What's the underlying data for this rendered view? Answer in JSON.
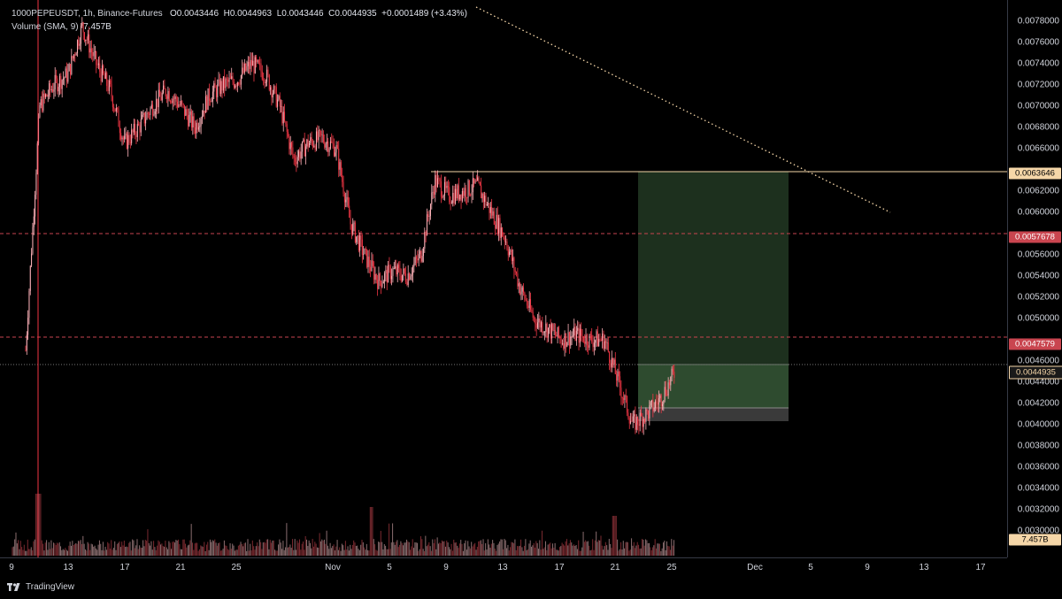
{
  "legend": {
    "symbol": "1000PEPEUSDT, 1h, Binance-Futures",
    "open": "O0.0043446",
    "high": "H0.0044963",
    "low": "L0.0043446",
    "close": "C0.0044935",
    "change": "+0.0001489 (+3.43%)",
    "volume_label": "Volume (SMA, 9)",
    "volume_value": "7.457B"
  },
  "price_axis_ticks": [
    "0.0078000",
    "0.0076000",
    "0.0074000",
    "0.0072000",
    "0.0070000",
    "0.0068000",
    "0.0066000",
    "0.0062000",
    "0.0060000",
    "0.0056000",
    "0.0054000",
    "0.0052000",
    "0.0050000",
    "0.0046000",
    "0.0044000",
    "0.0042000",
    "0.0040000",
    "0.0038000",
    "0.0036000",
    "0.0034000",
    "0.0032000",
    "0.0030000"
  ],
  "price_tags": {
    "resistance_top": "0.0063646",
    "dashed_upper": "0.0057678",
    "dashed_lower": "0.0047579",
    "last_price": "0.0044935",
    "volume": "7.457B"
  },
  "time_axis_ticks": [
    "9",
    "13",
    "17",
    "21",
    "25",
    "Nov",
    "5",
    "9",
    "13",
    "17",
    "21",
    "25",
    "Dec",
    "5",
    "9",
    "13",
    "17"
  ],
  "footer": {
    "brand": "TradingView"
  },
  "colors": {
    "background": "#000000",
    "candle": "#f23645",
    "candle_light": "#ffb3ba",
    "resistance_line": "#f5d6a8",
    "dashed_line": "#c9454f",
    "target_zone": "#1f3320",
    "entry_zone": "#2e4b2f",
    "stop_zone": "#3a3a3a"
  },
  "chart_data": {
    "type": "candlestick",
    "symbol": "1000PEPEUSDT",
    "interval": "1h",
    "exchange": "Binance-Futures",
    "ylim": [
      0.00282,
      0.00795
    ],
    "levels": [
      0.0063646,
      0.0057678,
      0.0047579,
      0.0044935
    ],
    "position": {
      "entry": 0.0044935,
      "target": 0.0063646,
      "stop": 0.00407
    },
    "close_path": [
      [
        "Oct 10",
        0.0047
      ],
      [
        "Oct 11",
        0.007
      ],
      [
        "Oct 12",
        0.0072
      ],
      [
        "Oct 13",
        0.0073
      ],
      [
        "Oct 14",
        0.00775
      ],
      [
        "Oct 15",
        0.0074
      ],
      [
        "Oct 16",
        0.00715
      ],
      [
        "Oct 17",
        0.00665
      ],
      [
        "Oct 18",
        0.0068
      ],
      [
        "Oct 19",
        0.007
      ],
      [
        "Oct 20",
        0.00715
      ],
      [
        "Oct 21",
        0.007
      ],
      [
        "Oct 22",
        0.0068
      ],
      [
        "Oct 23",
        0.0071
      ],
      [
        "Oct 24",
        0.0072
      ],
      [
        "Oct 25",
        0.00725
      ],
      [
        "Oct 26",
        0.0074
      ],
      [
        "Oct 27",
        0.0073
      ],
      [
        "Oct 28",
        0.007
      ],
      [
        "Oct 29",
        0.0065
      ],
      [
        "Oct 30",
        0.00665
      ],
      [
        "Oct 31",
        0.0067
      ],
      [
        "Nov 1",
        0.0066
      ],
      [
        "Nov 2",
        0.0059
      ],
      [
        "Nov 3",
        0.0056
      ],
      [
        "Nov 4",
        0.00535
      ],
      [
        "Nov 5",
        0.00545
      ],
      [
        "Nov 6",
        0.0054
      ],
      [
        "Nov 7",
        0.0056
      ],
      [
        "Nov 8",
        0.0063
      ],
      [
        "Nov 9",
        0.00615
      ],
      [
        "Nov 10",
        0.0062
      ],
      [
        "Nov 11",
        0.00625
      ],
      [
        "Nov 12",
        0.006
      ],
      [
        "Nov 13",
        0.00575
      ],
      [
        "Nov 14",
        0.0053
      ],
      [
        "Nov 15",
        0.005
      ],
      [
        "Nov 16",
        0.0049
      ],
      [
        "Nov 17",
        0.0048
      ],
      [
        "Nov 18",
        0.00485
      ],
      [
        "Nov 19",
        0.0048
      ],
      [
        "Nov 20",
        0.0048
      ],
      [
        "Nov 21",
        0.0044
      ],
      [
        "Nov 22",
        0.004
      ],
      [
        "Nov 23",
        0.0041
      ],
      [
        "Nov 24",
        0.00425
      ],
      [
        "Nov 25",
        0.0044935
      ]
    ]
  }
}
